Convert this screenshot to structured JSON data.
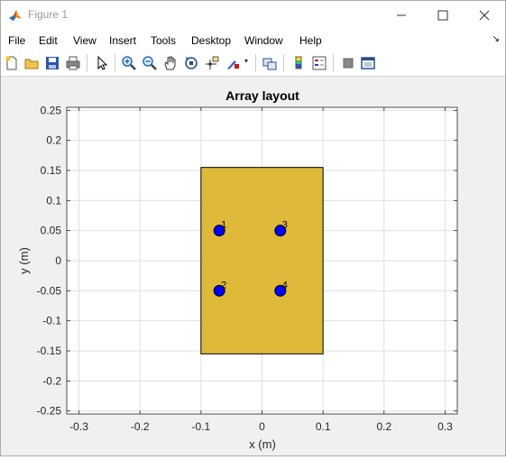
{
  "window": {
    "title": "Figure 1",
    "icon": "matlab-logo-icon",
    "controls": [
      "minimize-icon",
      "maximize-icon",
      "close-icon"
    ]
  },
  "menu": {
    "items": [
      {
        "label": "File"
      },
      {
        "label": "Edit"
      },
      {
        "label": "View"
      },
      {
        "label": "Insert"
      },
      {
        "label": "Tools"
      },
      {
        "label": "Desktop"
      },
      {
        "label": "Window"
      },
      {
        "label": "Help"
      }
    ]
  },
  "toolbar": {
    "buttons": [
      "new-figure-icon",
      "open-file-icon",
      "save-icon",
      "print-icon",
      "edit-plot-arrow-icon",
      "zoom-in-icon",
      "zoom-out-icon",
      "pan-hand-icon",
      "rotate-3d-icon",
      "data-cursor-icon",
      "brush-icon",
      "link-plot-icon",
      "colorbar-icon",
      "legend-icon",
      "hide-plot-tools-icon",
      "show-plot-tools-icon"
    ]
  },
  "chart_data": {
    "type": "scatter",
    "title": "Array layout",
    "xlabel": "x (m)",
    "ylabel": "y (m)",
    "xlim": [
      -0.32,
      0.32
    ],
    "ylim": [
      -0.255,
      0.255
    ],
    "xticks": [
      -0.3,
      -0.2,
      -0.1,
      0,
      0.1,
      0.2,
      0.3
    ],
    "xtick_labels": [
      "-0.3",
      "-0.2",
      "-0.1",
      "0",
      "0.1",
      "0.2",
      "0.3"
    ],
    "yticks": [
      0.25,
      0.2,
      0.15,
      0.1,
      0.05,
      0,
      -0.05,
      -0.1,
      -0.15,
      -0.2,
      -0.25
    ],
    "ytick_labels": [
      "0.25",
      "0.2",
      "0.15",
      "0.1",
      "0.05",
      "0",
      "-0.05",
      "-0.1",
      "-0.15",
      "-0.2",
      "-0.25"
    ],
    "grid": true,
    "ground_plane": {
      "x": [
        -0.1,
        0.1
      ],
      "y": [
        -0.155,
        0.155
      ],
      "color": "#dfb93a"
    },
    "points": [
      {
        "label": "1",
        "x": -0.07,
        "y": 0.05
      },
      {
        "label": "2",
        "x": -0.07,
        "y": -0.05
      },
      {
        "label": "3",
        "x": 0.03,
        "y": 0.05
      },
      {
        "label": "4",
        "x": 0.03,
        "y": -0.05
      }
    ],
    "point_color": "#0000ff"
  }
}
